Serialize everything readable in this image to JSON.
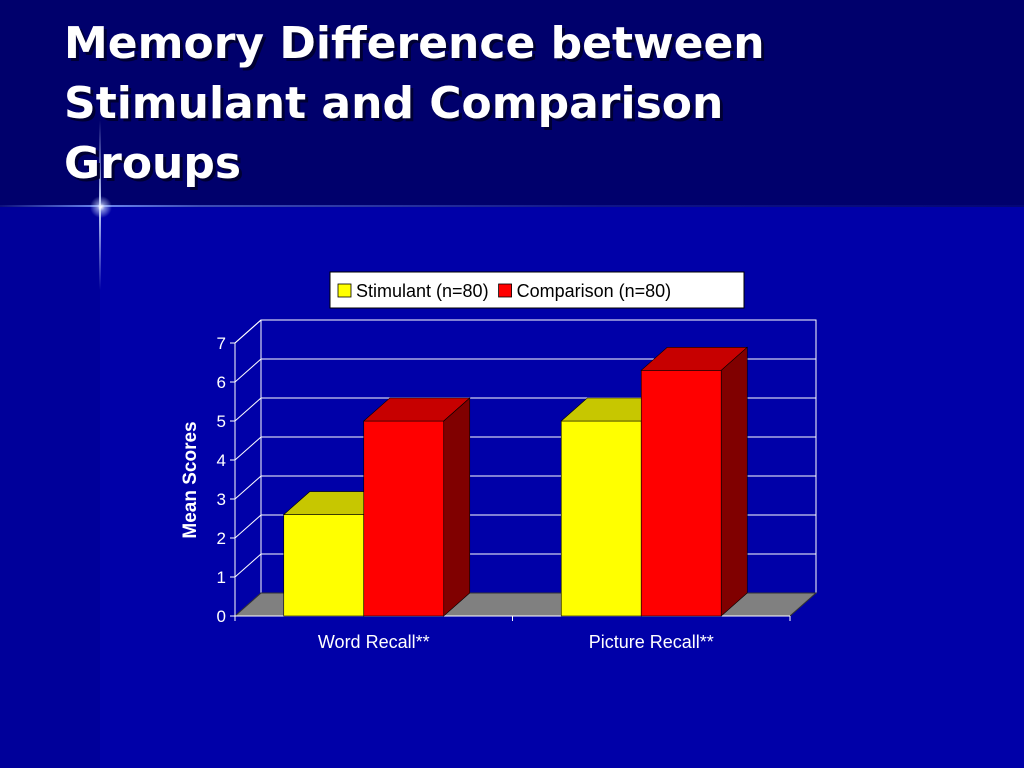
{
  "slide": {
    "title_lines": [
      "Memory Difference between",
      "Stimulant and Comparison",
      "Groups"
    ]
  },
  "colors": {
    "background": "#0000a8",
    "title_band": "#00006c",
    "stimulant": "#ffff00",
    "comparison": "#ff0000",
    "floor": "#808080"
  },
  "chart_data": {
    "type": "bar",
    "style": "3d-clustered",
    "categories": [
      "Word Recall**",
      "Picture Recall**"
    ],
    "series": [
      {
        "name": "Stimulant (n=80)",
        "values": [
          2.6,
          5.0
        ],
        "color": "#ffff00"
      },
      {
        "name": "Comparison (n=80)",
        "values": [
          5.0,
          6.3
        ],
        "color": "#ff0000"
      }
    ],
    "xlabel": "",
    "ylabel": "Mean Scores",
    "ylim": [
      0,
      7
    ],
    "yticks": [
      "0",
      "1",
      "2",
      "3",
      "4",
      "5",
      "6",
      "7"
    ],
    "grid": true,
    "legend_position": "top"
  }
}
